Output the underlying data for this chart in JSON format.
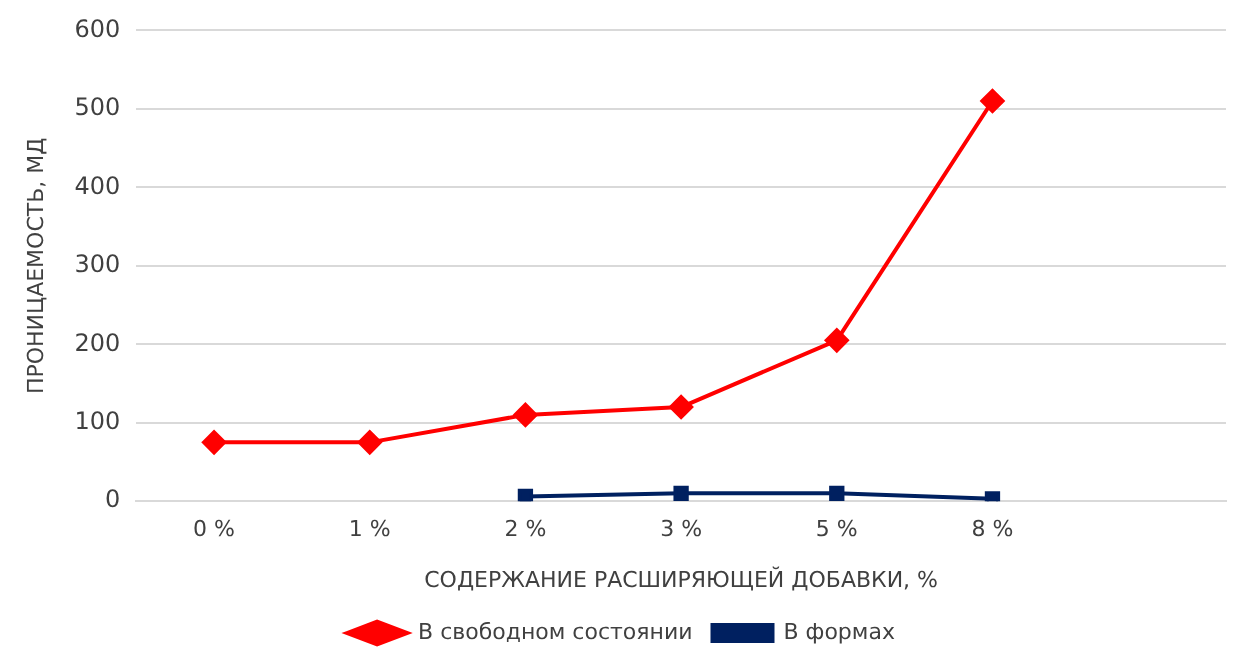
{
  "chart_data": {
    "type": "line",
    "xlabel": "СОДЕРЖАНИЕ РАСШИРЯЮЩЕЙ ДОБАВКИ, %",
    "ylabel": "ПРОНИЦАЕМОСТЬ, МД",
    "categories": [
      "0 %",
      "1 %",
      "2 %",
      "3 %",
      "5 %",
      "8 %",
      null
    ],
    "series": [
      {
        "name": "В свободном состоянии",
        "color": "#ff0000",
        "marker": "diamond",
        "values": [
          75,
          75,
          110,
          120,
          205,
          510,
          null
        ]
      },
      {
        "name": "В формах",
        "color": "#002060",
        "marker": "square",
        "values": [
          null,
          null,
          6,
          10,
          10,
          3,
          null
        ]
      }
    ],
    "ylim": [
      0,
      600
    ],
    "yticks": [
      0,
      100,
      200,
      300,
      400,
      500,
      600
    ],
    "grid": "y",
    "legend": "bottom",
    "line_style": "solid"
  }
}
